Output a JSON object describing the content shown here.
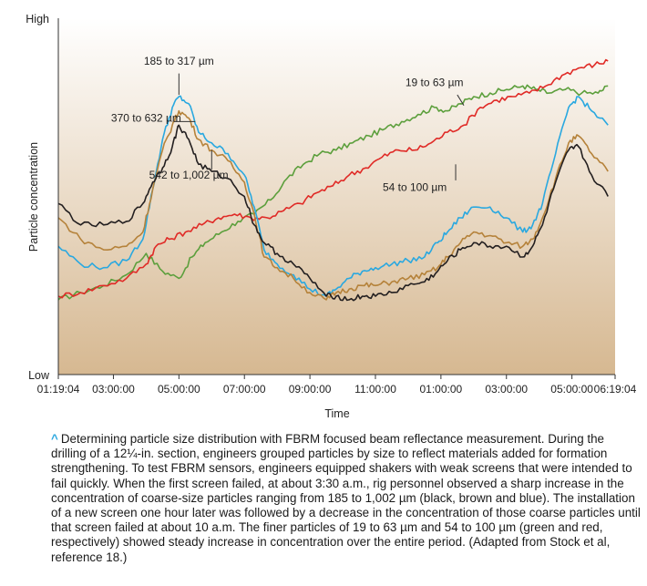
{
  "chart_data": {
    "type": "line",
    "xlabel": "Time",
    "ylabel": "Particle concentration",
    "y_ticks": [
      "High",
      "Low"
    ],
    "x_ticks": [
      "01:19:04",
      "03:00:00",
      "05:00:00",
      "07:00:00",
      "09:00:00",
      "11:00:00",
      "01:00:00",
      "03:00:00",
      "05:00:00",
      "06:19:04"
    ],
    "x_tick_hours": [
      1.318,
      3,
      5,
      7,
      9,
      11,
      13,
      15,
      17,
      18.318
    ],
    "xlim": [
      1.318,
      18.318
    ],
    "ylim": [
      0,
      100
    ],
    "grid": false,
    "series": [
      {
        "name": "19 to 63 µm",
        "color": "#5c9f3c",
        "label": {
          "text": "19 to 63 µm",
          "at": [
            12.8,
            81
          ]
        },
        "x": [
          1.318,
          2.0,
          2.7,
          3.4,
          4.0,
          4.5,
          5.0,
          5.4,
          5.8,
          6.3,
          6.8,
          7.3,
          7.8,
          8.3,
          8.8,
          9.3,
          9.8,
          10.3,
          10.8,
          11.3,
          11.8,
          12.3,
          12.8,
          13.2,
          13.6,
          14.0,
          14.5,
          15.0,
          15.5,
          15.9,
          16.3,
          16.8,
          17.3,
          17.8,
          18.1
        ],
        "y": [
          21,
          23,
          25,
          28,
          34,
          29,
          27,
          33,
          37,
          40,
          43,
          45,
          49,
          55,
          59,
          62,
          63,
          65,
          67,
          69,
          71,
          73,
          75,
          74,
          76,
          78,
          79,
          80,
          81,
          80,
          79,
          80,
          79,
          79,
          81
        ]
      },
      {
        "name": "54 to 100 µm",
        "color": "#e02a26",
        "label": {
          "text": "54 to 100 µm",
          "at": [
            12.2,
            51.5
          ]
        },
        "x": [
          1.318,
          2.0,
          2.7,
          3.4,
          4.0,
          4.3,
          4.7,
          5.2,
          5.7,
          6.2,
          6.7,
          7.2,
          7.7,
          8.2,
          8.7,
          9.2,
          9.7,
          10.2,
          10.7,
          11.2,
          11.7,
          12.2,
          12.7,
          13.2,
          13.7,
          14.2,
          14.7,
          15.2,
          15.7,
          16.2,
          16.7,
          17.2,
          17.7,
          18.1
        ],
        "y": [
          22,
          23,
          25,
          27,
          31,
          36,
          38,
          40,
          42,
          44,
          45,
          44,
          44,
          46,
          48,
          51,
          53,
          56,
          58,
          61,
          63,
          63,
          65,
          68,
          70,
          75,
          77,
          78,
          79,
          81,
          84,
          86,
          87,
          88
        ]
      },
      {
        "name": "185 to 317 µm",
        "color": "#29a8e0",
        "label": {
          "text": "185 to 317 µm",
          "at": [
            5.0,
            87
          ]
        },
        "x": [
          1.318,
          2.0,
          2.7,
          3.4,
          3.9,
          4.2,
          4.5,
          4.8,
          5.0,
          5.3,
          5.6,
          6.0,
          6.5,
          7.0,
          7.3,
          7.6,
          8.0,
          8.5,
          9.0,
          9.5,
          9.8,
          10.2,
          10.6,
          11.0,
          11.5,
          12.0,
          12.5,
          12.9,
          13.2,
          13.6,
          14.0,
          14.5,
          15.0,
          15.5,
          15.8,
          16.1,
          16.5,
          16.9,
          17.2,
          17.6,
          18.1
        ],
        "y": [
          36,
          31,
          30,
          32,
          38,
          52,
          66,
          75,
          78,
          76,
          68,
          65,
          62,
          56,
          47,
          35,
          31,
          28,
          24,
          22,
          24,
          27,
          29,
          30,
          31,
          32,
          33,
          37,
          40,
          44,
          47,
          47,
          44,
          40,
          42,
          48,
          62,
          75,
          78,
          74,
          70
        ]
      },
      {
        "name": "370 to 632 µm",
        "color": "#b5823a",
        "label": {
          "text": "370 to 632 µm",
          "at": [
            4.0,
            71
          ]
        },
        "x": [
          1.318,
          2.0,
          2.7,
          3.4,
          3.9,
          4.2,
          4.5,
          4.8,
          5.0,
          5.3,
          5.6,
          6.0,
          6.5,
          7.0,
          7.3,
          7.6,
          8.0,
          8.5,
          9.0,
          9.5,
          9.8,
          10.2,
          10.6,
          11.0,
          11.5,
          12.0,
          12.5,
          12.9,
          13.2,
          13.6,
          14.0,
          14.5,
          15.0,
          15.5,
          15.8,
          16.1,
          16.5,
          16.9,
          17.2,
          17.6,
          18.1
        ],
        "y": [
          44,
          38,
          35,
          36,
          40,
          52,
          63,
          70,
          74,
          72,
          66,
          63,
          60,
          54,
          45,
          33,
          30,
          27,
          23,
          21,
          23,
          24,
          25,
          25,
          26,
          27,
          28,
          30,
          33,
          37,
          40,
          39,
          37,
          36,
          38,
          44,
          55,
          65,
          67,
          62,
          57
        ]
      },
      {
        "name": "542 to 1,002 µm",
        "color": "#231f20",
        "label": {
          "text": "542 to 1,002 µm",
          "at": [
            5.3,
            55
          ]
        },
        "x": [
          1.318,
          2.0,
          2.7,
          3.4,
          3.9,
          4.2,
          4.5,
          4.8,
          5.0,
          5.3,
          5.6,
          6.0,
          6.5,
          7.0,
          7.3,
          7.6,
          8.0,
          8.5,
          9.0,
          9.5,
          9.8,
          10.2,
          10.6,
          11.0,
          11.5,
          12.0,
          12.5,
          12.9,
          13.2,
          13.6,
          14.0,
          14.5,
          15.0,
          15.5,
          15.8,
          16.1,
          16.5,
          16.9,
          17.2,
          17.6,
          18.1
        ],
        "y": [
          48,
          42,
          42,
          43,
          48,
          54,
          58,
          64,
          70,
          66,
          59,
          57,
          55,
          50,
          42,
          37,
          34,
          31,
          27,
          22,
          22,
          21,
          22,
          22,
          23,
          25,
          26,
          29,
          32,
          35,
          37,
          36,
          36,
          33,
          36,
          42,
          54,
          63,
          64,
          56,
          50
        ]
      }
    ],
    "callouts": [
      {
        "series": 2,
        "from": [
          5.0,
          84.5
        ],
        "to": [
          5.0,
          78.5
        ]
      },
      {
        "series": 3,
        "from": [
          4.85,
          71
        ],
        "to": [
          5.5,
          71
        ]
      },
      {
        "series": 4,
        "from": [
          6.0,
          57.5
        ],
        "to": [
          6.0,
          63
        ]
      },
      {
        "series": 1,
        "from": [
          13.45,
          54.5
        ],
        "to": [
          13.45,
          59
        ]
      },
      {
        "series": 0,
        "from": [
          13.5,
          78.5
        ],
        "to": [
          13.7,
          75.5
        ]
      }
    ]
  },
  "caption": {
    "mark": "^",
    "text": "Determining particle size distribution with FBRM focused beam reflectance measurement. During the drilling of a 12¼-in. section, engineers grouped particles by size to reflect materials added for formation strengthening. To test FBRM sensors, engineers equipped shakers with weak screens that were intended to fail quickly. When the first screen failed, at about 3:30 a.m., rig personnel observed a sharp increase in the concentration of coarse-size particles ranging from 185 to 1,002 µm (black, brown and blue). The installation of a new screen one hour later was followed by a decrease in the concentration of those coarse particles until that screen failed at about 10 a.m. The finer particles of 19 to 63 µm and 54 to 100 µm (green and red, respectively) showed steady increase in concentration over the entire period. (Adapted from Stock et al, reference 18.)"
  },
  "colors": {
    "plot_bg_top": "#ffffff",
    "plot_bg_bottom": "#d6b891",
    "axis": "#333333",
    "text": "#222222",
    "caption_mark": "#2aa7df"
  }
}
